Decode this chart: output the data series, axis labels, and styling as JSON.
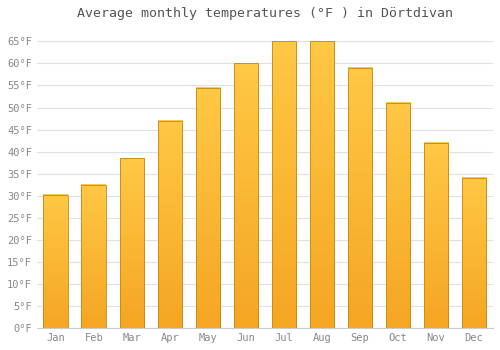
{
  "title": "Average monthly temperatures (°F ) in Dörtdivan",
  "months": [
    "Jan",
    "Feb",
    "Mar",
    "Apr",
    "May",
    "Jun",
    "Jul",
    "Aug",
    "Sep",
    "Oct",
    "Nov",
    "Dec"
  ],
  "values": [
    30.2,
    32.5,
    38.5,
    47.0,
    54.5,
    60.0,
    65.0,
    65.0,
    59.0,
    51.0,
    42.0,
    34.0
  ],
  "bar_color_bottom": "#F5A623",
  "bar_color_top": "#FFC845",
  "bar_edge_color": "#C8880A",
  "ylim": [
    0,
    68
  ],
  "yticks": [
    0,
    5,
    10,
    15,
    20,
    25,
    30,
    35,
    40,
    45,
    50,
    55,
    60,
    65
  ],
  "ytick_labels": [
    "0°F",
    "5°F",
    "10°F",
    "15°F",
    "20°F",
    "25°F",
    "30°F",
    "35°F",
    "40°F",
    "45°F",
    "50°F",
    "55°F",
    "60°F",
    "65°F"
  ],
  "background_color": "#ffffff",
  "grid_color": "#e0e0e8",
  "title_fontsize": 9.5,
  "tick_fontsize": 7.5,
  "bar_width": 0.65
}
